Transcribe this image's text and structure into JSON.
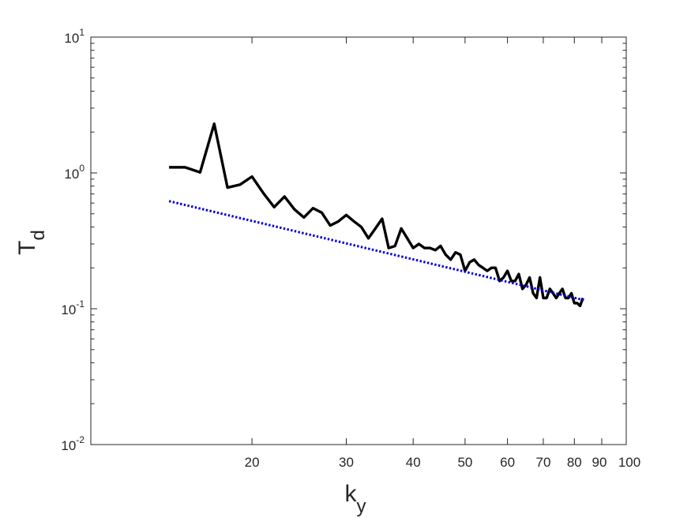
{
  "chart_data": {
    "type": "line",
    "title": "",
    "x_scale": "log",
    "y_scale": "log",
    "xlim": [
      10,
      100
    ],
    "ylim": [
      0.01,
      10
    ],
    "xlabel": {
      "main": "k",
      "sub": "y"
    },
    "ylabel": {
      "main": "T",
      "sub": "d"
    },
    "x_ticks": [
      {
        "value": 20,
        "label": "20"
      },
      {
        "value": 30,
        "label": "30"
      },
      {
        "value": 40,
        "label": "40"
      },
      {
        "value": 50,
        "label": "50"
      },
      {
        "value": 60,
        "label": "60"
      },
      {
        "value": 70,
        "label": "70"
      },
      {
        "value": 80,
        "label": "80"
      },
      {
        "value": 90,
        "label": "90"
      },
      {
        "value": 100,
        "label": "100"
      }
    ],
    "y_ticks": [
      {
        "value": 0.01,
        "base": "10",
        "exp": "-2"
      },
      {
        "value": 0.1,
        "base": "10",
        "exp": "-1"
      },
      {
        "value": 1,
        "base": "10",
        "exp": "0"
      },
      {
        "value": 10,
        "base": "10",
        "exp": "1"
      }
    ],
    "grid": false,
    "box": true,
    "series": [
      {
        "color": "#000000",
        "style": "solid",
        "x": [
          14,
          15,
          16,
          17,
          18,
          19,
          20,
          21,
          22,
          23,
          24,
          25,
          26,
          27,
          28,
          29,
          30,
          31,
          32,
          33,
          34,
          35,
          36,
          37,
          38,
          39,
          40,
          41,
          42,
          43,
          44,
          45,
          46,
          47,
          48,
          49,
          50,
          51,
          52,
          53,
          54,
          55,
          56,
          57,
          58,
          59,
          60,
          61,
          62,
          63,
          64,
          65,
          66,
          67,
          68,
          69,
          70,
          71,
          72,
          73,
          74,
          75,
          76,
          77,
          78,
          79,
          80,
          81,
          82,
          83
        ],
        "y": [
          1.1,
          1.1,
          1.01,
          2.3,
          0.78,
          0.82,
          0.94,
          0.71,
          0.56,
          0.67,
          0.54,
          0.47,
          0.55,
          0.51,
          0.41,
          0.44,
          0.49,
          0.44,
          0.4,
          0.33,
          0.39,
          0.46,
          0.28,
          0.29,
          0.39,
          0.33,
          0.28,
          0.3,
          0.28,
          0.28,
          0.27,
          0.29,
          0.25,
          0.23,
          0.26,
          0.25,
          0.19,
          0.22,
          0.23,
          0.21,
          0.2,
          0.19,
          0.2,
          0.2,
          0.16,
          0.17,
          0.19,
          0.16,
          0.16,
          0.18,
          0.14,
          0.15,
          0.17,
          0.13,
          0.12,
          0.17,
          0.12,
          0.12,
          0.14,
          0.13,
          0.12,
          0.13,
          0.14,
          0.12,
          0.12,
          0.13,
          0.11,
          0.11,
          0.105,
          0.12
        ]
      },
      {
        "color": "#0000cd",
        "style": "dotted",
        "x": [
          14,
          84
        ],
        "y": [
          0.62,
          0.115
        ]
      }
    ]
  }
}
